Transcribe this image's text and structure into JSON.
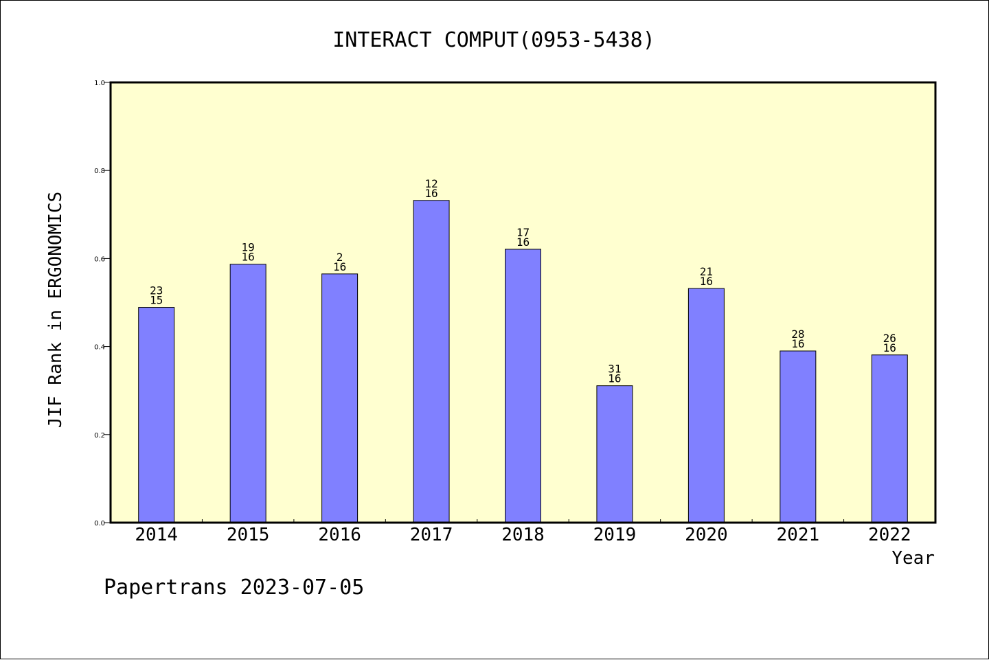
{
  "chart_data": {
    "type": "bar",
    "title": "INTERACT COMPUT(0953-5438)",
    "xlabel": "Year",
    "ylabel": "JIF Rank in ERGONOMICS",
    "categories": [
      "2014",
      "2015",
      "2016",
      "2017",
      "2018",
      "2019",
      "2020",
      "2021",
      "2022"
    ],
    "series": [
      {
        "values": [
          0.489,
          0.587,
          0.565,
          0.732,
          0.621,
          0.311,
          0.532,
          0.39,
          0.381
        ]
      }
    ],
    "data_labels": [
      [
        "23",
        "15"
      ],
      [
        "19",
        "16"
      ],
      [
        "2",
        "16"
      ],
      [
        "12",
        "16"
      ],
      [
        "17",
        "16"
      ],
      [
        "31",
        "16"
      ],
      [
        "21",
        "16"
      ],
      [
        "28",
        "16"
      ],
      [
        "26",
        "16"
      ]
    ],
    "ylim": [
      0.0,
      1.0
    ],
    "yticks": [
      "0.0",
      "0.2",
      "0.4",
      "0.6",
      "0.8",
      "1.0"
    ],
    "grid": false,
    "colors": {
      "plot_background": "#ffffd0",
      "bar_fill": "#8080ff",
      "bar_stroke": "#000000"
    }
  },
  "footer": {
    "text": "Papertrans 2023-07-05"
  }
}
